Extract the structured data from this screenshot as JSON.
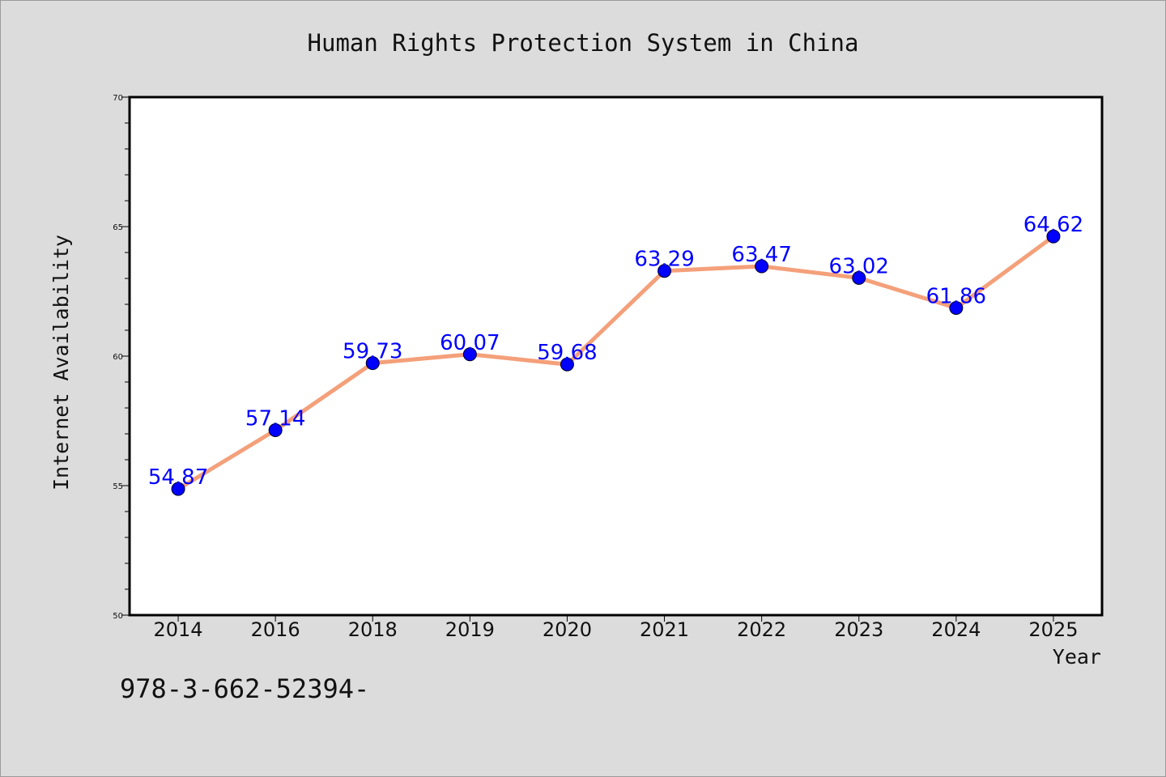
{
  "chart_data": {
    "type": "line",
    "title": "Human Rights Protection System in China",
    "xlabel": "Year",
    "ylabel": "Internet Availability",
    "categories": [
      "2014",
      "2016",
      "2018",
      "2019",
      "2020",
      "2021",
      "2022",
      "2023",
      "2024",
      "2025"
    ],
    "series": [
      {
        "values": [
          54.87,
          57.14,
          59.73,
          60.07,
          59.68,
          63.29,
          63.47,
          63.02,
          61.86,
          64.62
        ],
        "labels": [
          "54.87",
          "57.14",
          "59.73",
          "60.07",
          "59.68",
          "63.29",
          "63.47",
          "63.02",
          "61.86",
          "64.62"
        ],
        "line_color": "#f4a07a",
        "marker_color": "#0000ff",
        "label_color": "#0000ff"
      }
    ],
    "ylim": [
      50,
      70
    ],
    "yticks": [
      "50",
      "55",
      "60",
      "65",
      "70"
    ],
    "grid": false,
    "legend": "none"
  },
  "footnote": "978-3-662-52394-"
}
